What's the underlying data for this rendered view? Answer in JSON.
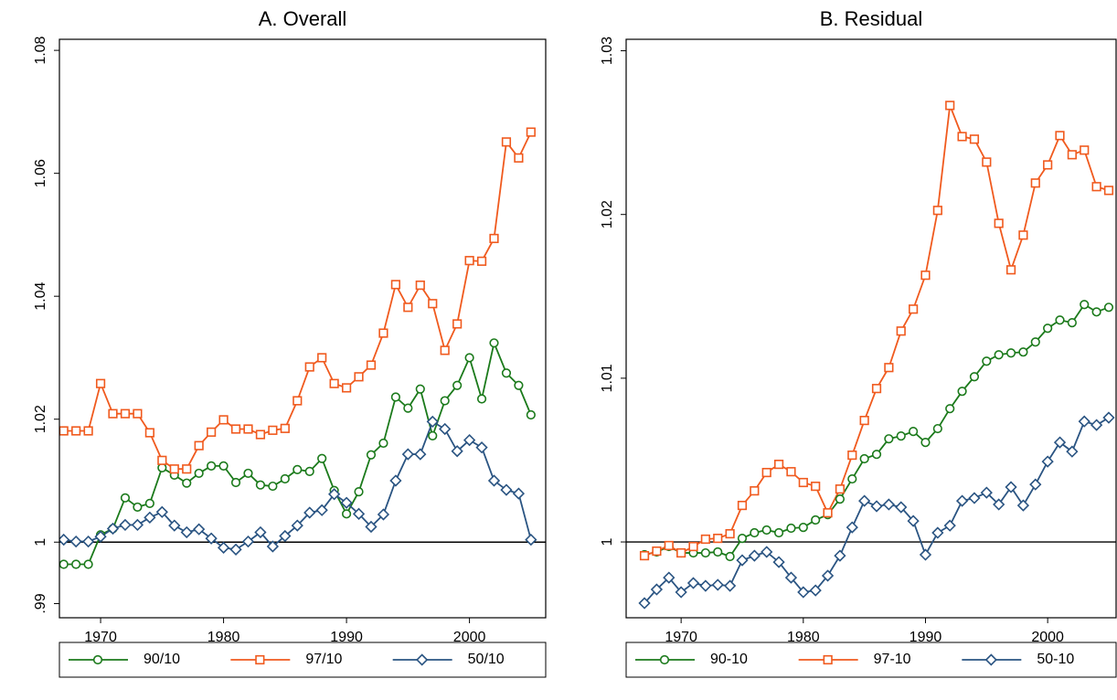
{
  "chart_data": [
    {
      "type": "line",
      "title": "A. Overall",
      "x": [
        1967,
        1968,
        1969,
        1970,
        1971,
        1972,
        1973,
        1974,
        1975,
        1976,
        1977,
        1978,
        1979,
        1980,
        1981,
        1982,
        1983,
        1984,
        1985,
        1986,
        1987,
        1988,
        1989,
        1990,
        1991,
        1992,
        1993,
        1994,
        1995,
        1996,
        1997,
        1998,
        1999,
        2000,
        2001,
        2002,
        2003,
        2004,
        2005
      ],
      "series": [
        {
          "name": "90/10",
          "color": "#1b7a1b",
          "marker": "circle",
          "values": [
            0.9964,
            0.9964,
            0.9964,
            1.0012,
            1.0022,
            1.0072,
            1.0057,
            1.0063,
            1.0121,
            1.0109,
            1.0096,
            1.0112,
            1.0124,
            1.0124,
            1.0097,
            1.0112,
            1.0093,
            1.0091,
            1.0103,
            1.0118,
            1.0115,
            1.0136,
            1.0084,
            1.0046,
            1.0082,
            1.0142,
            1.0161,
            1.0236,
            1.0218,
            1.0249,
            1.0173,
            1.023,
            1.0255,
            1.03,
            1.0233,
            1.0324,
            1.0275,
            1.0255,
            1.0207
          ]
        },
        {
          "name": "97/10",
          "color": "#f05a1e",
          "marker": "square",
          "values": [
            1.0181,
            1.0181,
            1.0181,
            1.0258,
            1.0209,
            1.0209,
            1.0209,
            1.0178,
            1.0133,
            1.0119,
            1.0119,
            1.0157,
            1.0179,
            1.0199,
            1.0184,
            1.0184,
            1.0175,
            1.0182,
            1.0185,
            1.023,
            1.0285,
            1.03,
            1.0258,
            1.0251,
            1.0269,
            1.0288,
            1.034,
            1.0419,
            1.0382,
            1.0418,
            1.0388,
            1.0312,
            1.0355,
            1.0458,
            1.0457,
            1.0494,
            1.0651,
            1.0625,
            1.0667
          ]
        },
        {
          "name": "50/10",
          "color": "#2a5482",
          "marker": "diamond",
          "values": [
            1.0004,
            1.0001,
            1.0001,
            1.0009,
            1.0022,
            1.0028,
            1.0028,
            1.004,
            1.0049,
            1.0027,
            1.0016,
            1.0021,
            1.0006,
            0.9991,
            0.9988,
            1.0001,
            1.0016,
            0.9993,
            1.001,
            1.0027,
            1.0048,
            1.0052,
            1.0078,
            1.0064,
            1.0046,
            1.0025,
            1.0045,
            1.01,
            1.0143,
            1.0143,
            1.0196,
            1.0184,
            1.0148,
            1.0166,
            1.0154,
            1.01,
            1.0085,
            1.0079,
            1.0004
          ]
        }
      ],
      "xlim": [
        1966.65,
        2006.2
      ],
      "xticks": [
        1970,
        1980,
        1990,
        2000
      ],
      "ylim": [
        0.9877,
        1.0818
      ],
      "yticks": [
        {
          "value": 0.99,
          "label": ".99"
        },
        1,
        1.02,
        1.04,
        1.06,
        1.08
      ],
      "hline": 1,
      "grid": false,
      "legend": "bottom"
    },
    {
      "type": "line",
      "title": "B. Residual",
      "x": [
        1967,
        1968,
        1969,
        1970,
        1971,
        1972,
        1973,
        1974,
        1975,
        1976,
        1977,
        1978,
        1979,
        1980,
        1981,
        1982,
        1983,
        1984,
        1985,
        1986,
        1987,
        1988,
        1989,
        1990,
        1991,
        1992,
        1993,
        1994,
        1995,
        1996,
        1997,
        1998,
        1999,
        2000,
        2001,
        2002,
        2003,
        2004,
        2005
      ],
      "series": [
        {
          "name": "90-10",
          "color": "#1b7a1b",
          "marker": "circle",
          "values": [
            0.99922,
            0.99939,
            0.99972,
            0.99933,
            0.99933,
            0.99933,
            0.99939,
            0.99911,
            1.00022,
            1.00056,
            1.00073,
            1.00056,
            1.00084,
            1.00089,
            1.00134,
            1.00167,
            1.00262,
            1.00385,
            1.00508,
            1.00535,
            1.0063,
            1.00647,
            1.00675,
            1.00608,
            1.00692,
            1.00814,
            1.0092,
            1.01009,
            1.01104,
            1.01143,
            1.01154,
            1.0116,
            1.01221,
            1.01305,
            1.01355,
            1.01339,
            1.0145,
            1.01405,
            1.01433
          ]
        },
        {
          "name": "97-10",
          "color": "#f05a1e",
          "marker": "square",
          "values": [
            0.99916,
            0.99944,
            0.99978,
            0.99933,
            0.99972,
            1.00017,
            1.00022,
            1.0005,
            1.00223,
            1.00312,
            1.00424,
            1.00474,
            1.00429,
            1.00363,
            1.0034,
            1.00178,
            1.00323,
            1.0053,
            1.00742,
            1.00937,
            1.01065,
            1.01288,
            1.01422,
            1.01629,
            1.02025,
            1.02666,
            1.02476,
            1.0246,
            1.0232,
            1.01946,
            1.01662,
            1.01874,
            1.02192,
            1.02303,
            1.02482,
            1.02365,
            1.02393,
            1.0217,
            1.02147
          ]
        },
        {
          "name": "50-10",
          "color": "#2a5482",
          "marker": "diamond",
          "values": [
            0.99626,
            0.9971,
            0.99782,
            0.99693,
            0.99749,
            0.99732,
            0.99738,
            0.99732,
            0.99888,
            0.99916,
            0.99939,
            0.99877,
            0.99782,
            0.99693,
            0.99704,
            0.99794,
            0.99916,
            1.00089,
            1.00251,
            1.00218,
            1.00229,
            1.00212,
            1.00128,
            0.99922,
            1.00056,
            1.001,
            1.00251,
            1.00268,
            1.00301,
            1.00229,
            1.00335,
            1.00223,
            1.00351,
            1.00491,
            1.00608,
            1.00552,
            1.00736,
            1.00714,
            1.00759
          ]
        }
      ],
      "xlim": [
        1965.5,
        2005.6
      ],
      "xticks": [
        1970,
        1980,
        1990,
        2000
      ],
      "ylim": [
        0.99537,
        1.0307
      ],
      "yticks": [
        1,
        1.01,
        1.02,
        1.03
      ],
      "hline": 1,
      "grid": false,
      "legend": "bottom"
    }
  ]
}
